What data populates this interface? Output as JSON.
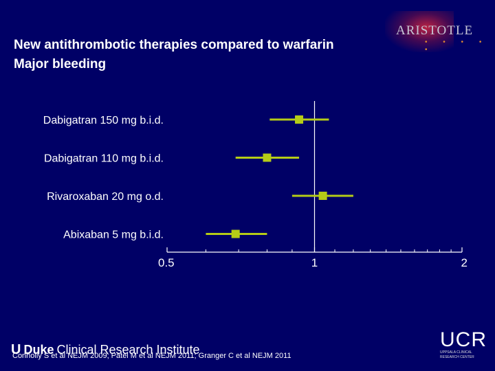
{
  "header": {
    "title_line1": "New antithrombotic therapies compared to warfarin",
    "title_line2": "Major bleeding"
  },
  "logos": {
    "aristotle": "ARISTOTLE",
    "aristotle_dots": "• • • • •",
    "duke_mark": "U",
    "duke_word": "Duke",
    "duke_rest": "Clinical Research Institute",
    "ucr": "UCR",
    "ucr_sub1": "Uppsala Clinical",
    "ucr_sub2": "Research Center"
  },
  "footer": {
    "citation": "Connolly S et al NEJM 2009; Patel M et al NEJM 2011; Granger C et al NEJM 2011"
  },
  "colors": {
    "background": "#000066",
    "marker": "#b5cc17",
    "axis": "#ffffff",
    "text": "#ffffff"
  },
  "chart_data": {
    "type": "forest",
    "xscale": "log",
    "xlim": [
      0.5,
      2
    ],
    "xticks": [
      {
        "value": 0.5,
        "label": "0.5"
      },
      {
        "value": 1,
        "label": "1"
      },
      {
        "value": 2,
        "label": "2"
      }
    ],
    "minor_ticks": [
      0.6,
      0.7,
      0.8,
      0.9,
      1.1,
      1.2,
      1.3,
      1.4,
      1.5,
      1.6,
      1.7,
      1.8,
      1.9
    ],
    "reference_line": 1,
    "rows": [
      {
        "label": "Dabigatran 150 mg b.i.d.",
        "estimate": 0.93,
        "lower": 0.81,
        "upper": 1.07
      },
      {
        "label": "Dabigatran 110 mg b.i.d.",
        "estimate": 0.8,
        "lower": 0.69,
        "upper": 0.93
      },
      {
        "label": "Rivaroxaban 20 mg o.d.",
        "estimate": 1.04,
        "lower": 0.9,
        "upper": 1.2
      },
      {
        "label": "Abixaban  5 mg b.i.d.",
        "estimate": 0.69,
        "lower": 0.6,
        "upper": 0.8
      }
    ]
  }
}
